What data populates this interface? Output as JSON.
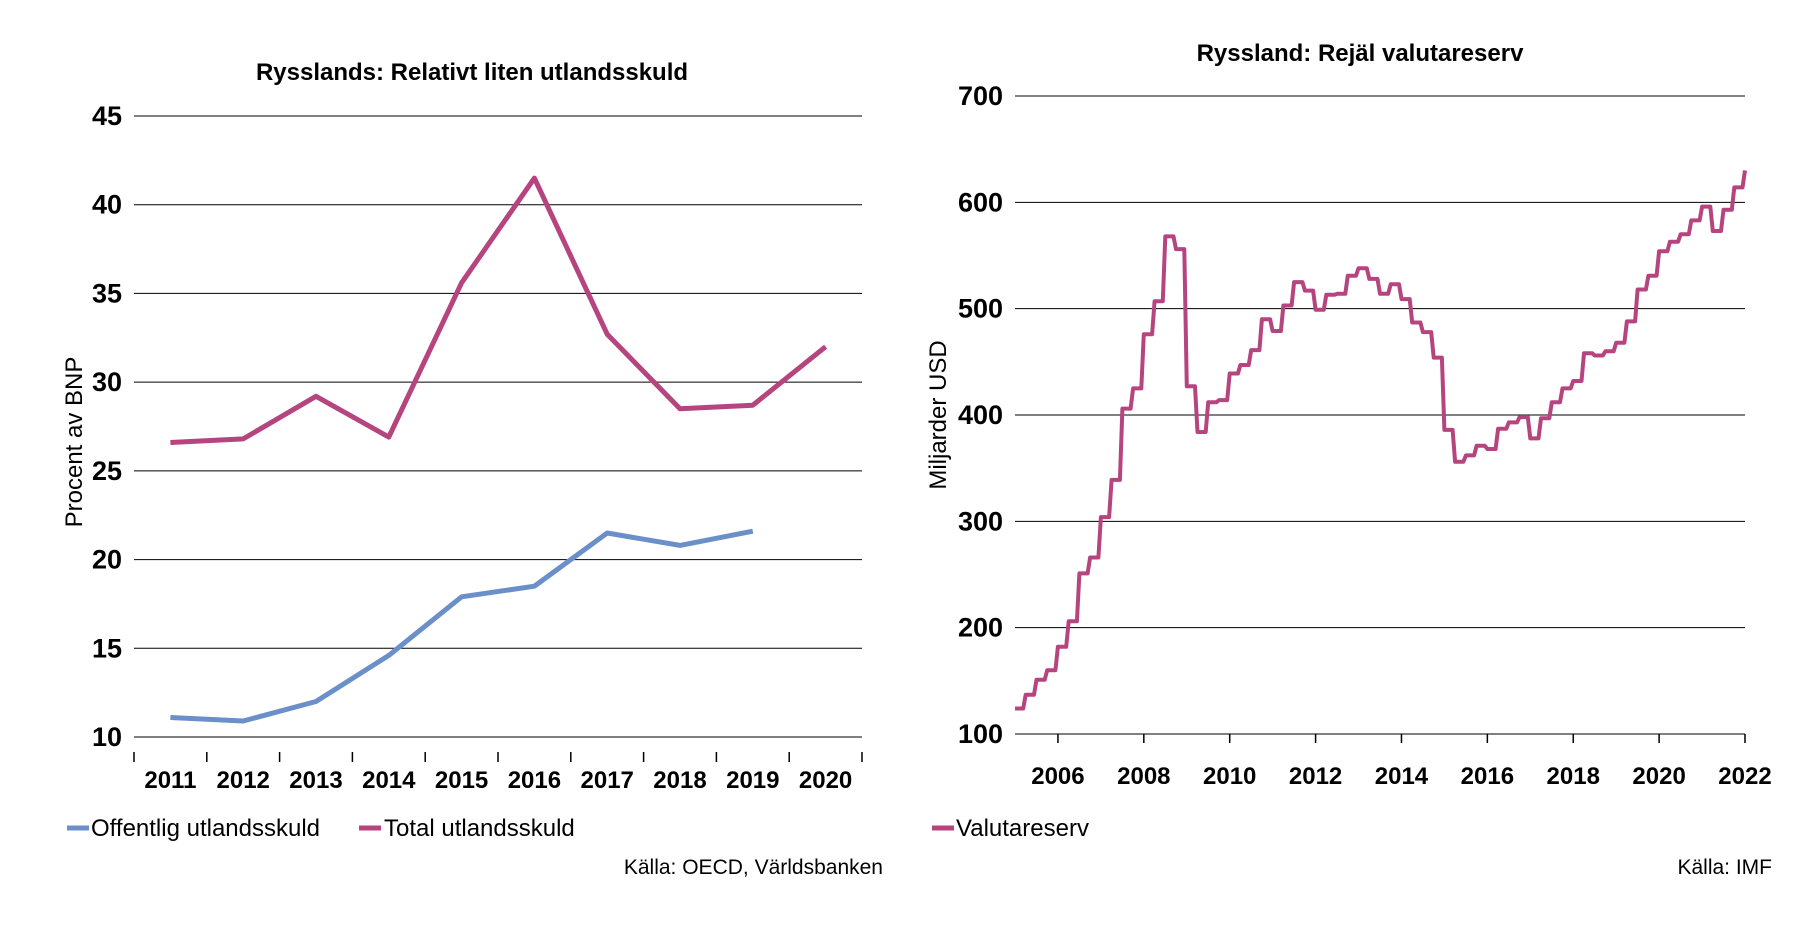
{
  "colors": {
    "blue": "#6b8fc9",
    "magenta": "#b5447f",
    "grid": "#000000"
  },
  "chart_data": [
    {
      "type": "line",
      "title": "Rysslands: Relativt liten utlandsskuld",
      "xlabel": "",
      "ylabel": "Procent av BNP",
      "ylim": [
        10,
        45
      ],
      "yticks": [
        10,
        15,
        20,
        25,
        30,
        35,
        40,
        45
      ],
      "categories": [
        "2011",
        "2012",
        "2013",
        "2014",
        "2015",
        "2016",
        "2017",
        "2018",
        "2019",
        "2020"
      ],
      "grid": true,
      "legend_position": "bottom",
      "series": [
        {
          "name": "Offentlig utlandsskuld",
          "color": "#6b8fc9",
          "values": [
            11.1,
            10.9,
            12.0,
            14.6,
            17.9,
            18.5,
            21.5,
            20.8,
            21.6,
            null
          ]
        },
        {
          "name": "Total utlandsskuld",
          "color": "#b5447f",
          "values": [
            26.6,
            26.8,
            29.2,
            26.9,
            35.6,
            41.5,
            32.7,
            28.5,
            28.7,
            32.0
          ]
        }
      ],
      "source": "Källa: OECD, Världsbanken"
    },
    {
      "type": "line",
      "title": "Ryssland: Rejäl valutareserv",
      "xlabel": "",
      "ylabel": "Miljarder USD",
      "ylim": [
        100,
        700
      ],
      "yticks": [
        100,
        200,
        300,
        400,
        500,
        600,
        700
      ],
      "xticks": [
        "2006",
        "2008",
        "2010",
        "2012",
        "2014",
        "2016",
        "2018",
        "2020",
        "2022"
      ],
      "xrange": [
        2005.0,
        2022.0
      ],
      "grid": true,
      "legend_position": "bottom-left",
      "series": [
        {
          "name": "Valutareserv",
          "color": "#b5447f",
          "step": true,
          "x": [
            2005.0,
            2005.25,
            2005.5,
            2005.75,
            2006.0,
            2006.25,
            2006.5,
            2006.75,
            2007.0,
            2007.25,
            2007.5,
            2007.75,
            2008.0,
            2008.25,
            2008.5,
            2008.75,
            2009.0,
            2009.25,
            2009.5,
            2009.75,
            2010.0,
            2010.25,
            2010.5,
            2010.75,
            2011.0,
            2011.25,
            2011.5,
            2011.75,
            2012.0,
            2012.25,
            2012.5,
            2012.75,
            2013.0,
            2013.25,
            2013.5,
            2013.75,
            2014.0,
            2014.25,
            2014.5,
            2014.75,
            2015.0,
            2015.25,
            2015.5,
            2015.75,
            2016.0,
            2016.25,
            2016.5,
            2016.75,
            2017.0,
            2017.25,
            2017.5,
            2017.75,
            2018.0,
            2018.25,
            2018.5,
            2018.75,
            2019.0,
            2019.25,
            2019.5,
            2019.75,
            2020.0,
            2020.25,
            2020.5,
            2020.75,
            2021.0,
            2021.25,
            2021.5,
            2021.75,
            2022.0
          ],
          "values": [
            124,
            137,
            151,
            160,
            182,
            206,
            251,
            266,
            304,
            339,
            406,
            425,
            476,
            507,
            568,
            556,
            427,
            384,
            412,
            414,
            439,
            447,
            461,
            490,
            479,
            503,
            525,
            517,
            499,
            513,
            514,
            531,
            538,
            528,
            514,
            523,
            509,
            487,
            478,
            454,
            386,
            356,
            362,
            371,
            368,
            387,
            393,
            398,
            378,
            397,
            412,
            425,
            432,
            458,
            456,
            460,
            468,
            488,
            518,
            531,
            554,
            563,
            570,
            583,
            596,
            573,
            593,
            614,
            630
          ]
        }
      ],
      "source": "Källa: IMF"
    }
  ]
}
